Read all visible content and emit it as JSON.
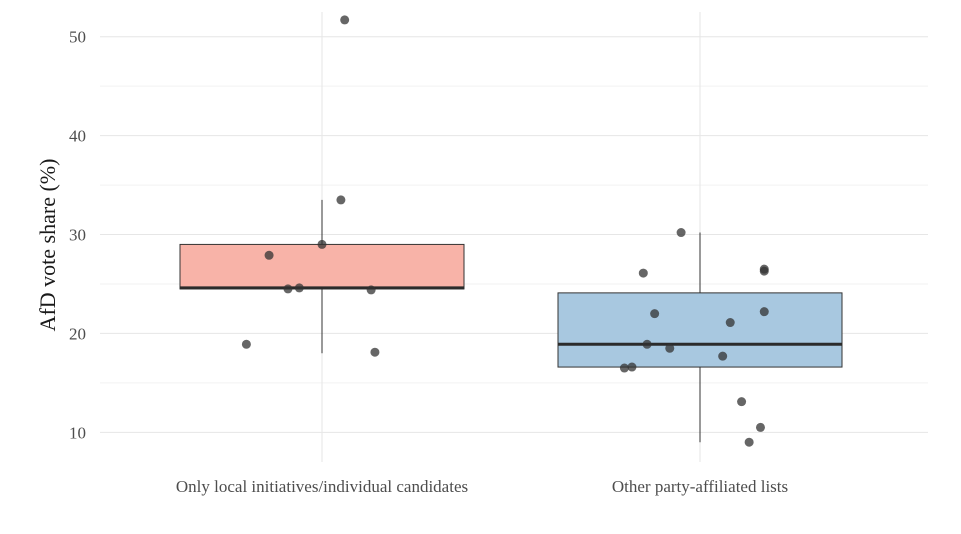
{
  "chart_data": {
    "type": "boxplot",
    "title": "",
    "xlabel": "",
    "ylabel": "AfD vote share (%)",
    "ylim": [
      7,
      52.5
    ],
    "y_ticks": [
      10,
      20,
      30,
      40,
      50
    ],
    "grid": true,
    "categories": [
      "Only local initiatives/individual candidates",
      "Other party-affiliated lists"
    ],
    "boxes": [
      {
        "category": "Only local initiatives/individual candidates",
        "fill": "#f8b3a8",
        "whisker_low": 18.0,
        "q1": 24.5,
        "median": 24.6,
        "q3": 29.0,
        "whisker_high": 33.5,
        "points": [
          {
            "jitter": -0.2,
            "y": 18.9
          },
          {
            "jitter": -0.14,
            "y": 27.9
          },
          {
            "jitter": -0.09,
            "y": 24.5
          },
          {
            "jitter": -0.06,
            "y": 24.6
          },
          {
            "jitter": 0.0,
            "y": 29.0
          },
          {
            "jitter": 0.05,
            "y": 33.5
          },
          {
            "jitter": 0.06,
            "y": 51.7
          },
          {
            "jitter": 0.13,
            "y": 24.4
          },
          {
            "jitter": 0.14,
            "y": 18.1
          }
        ]
      },
      {
        "category": "Other party-affiliated lists",
        "fill": "#a8c8e0",
        "whisker_low": 9.0,
        "q1": 16.6,
        "median": 18.9,
        "q3": 24.1,
        "whisker_high": 30.2,
        "points": [
          {
            "jitter": -0.2,
            "y": 16.5
          },
          {
            "jitter": -0.18,
            "y": 16.6
          },
          {
            "jitter": -0.15,
            "y": 26.1
          },
          {
            "jitter": -0.14,
            "y": 18.9
          },
          {
            "jitter": -0.12,
            "y": 22.0
          },
          {
            "jitter": -0.08,
            "y": 18.5
          },
          {
            "jitter": -0.05,
            "y": 30.2
          },
          {
            "jitter": 0.06,
            "y": 17.7
          },
          {
            "jitter": 0.08,
            "y": 21.1
          },
          {
            "jitter": 0.11,
            "y": 13.1
          },
          {
            "jitter": 0.13,
            "y": 9.0
          },
          {
            "jitter": 0.16,
            "y": 10.5
          },
          {
            "jitter": 0.17,
            "y": 26.3
          },
          {
            "jitter": 0.17,
            "y": 26.5
          },
          {
            "jitter": 0.17,
            "y": 22.2
          }
        ]
      }
    ]
  }
}
